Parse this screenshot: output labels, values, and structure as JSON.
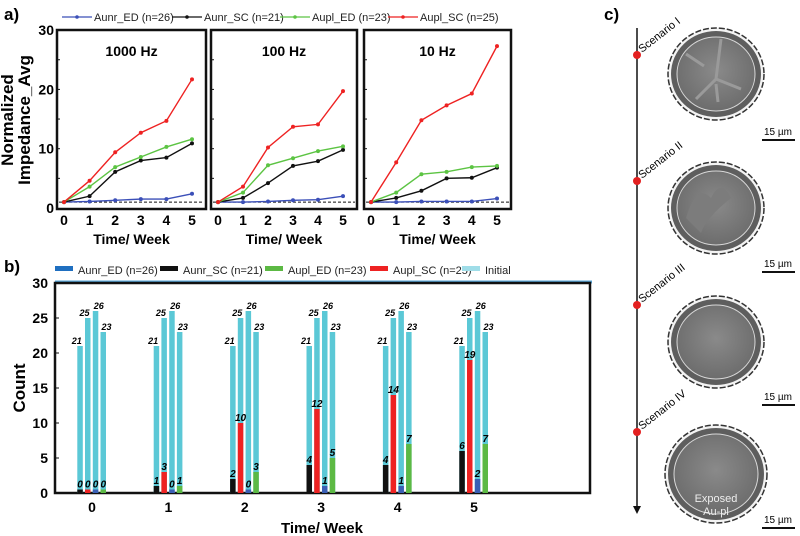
{
  "panel_labels": {
    "a": "a)",
    "b": "b)",
    "c": "c)"
  },
  "chart_data": [
    {
      "type": "line",
      "ylabel_lines": [
        "Normalized",
        "Impedance_Avg"
      ],
      "xlabel": "Time/ Week",
      "ylim": [
        0,
        30
      ],
      "yticks": [
        0,
        10,
        20,
        30
      ],
      "x": [
        0,
        1,
        2,
        3,
        4,
        5
      ],
      "reference_line": 1,
      "legend": "top",
      "series_meta": [
        {
          "name": "Aunr_ED (n=26)",
          "color": "#3b4fb8"
        },
        {
          "name": "Aunr_SC (n=21)",
          "color": "#111111"
        },
        {
          "name": "Aupl_ED (n=23)",
          "color": "#5cc443"
        },
        {
          "name": "Aupl_SC (n=25)",
          "color": "#ee2222"
        }
      ],
      "subplots": [
        {
          "title": "1000 Hz",
          "values": [
            [
              1,
              1.1,
              1.3,
              1.5,
              1.5,
              2.4
            ],
            [
              1,
              2.0,
              6.1,
              8.0,
              8.5,
              10.9
            ],
            [
              1,
              3.6,
              6.9,
              8.6,
              10.3,
              11.6
            ],
            [
              1,
              4.6,
              9.4,
              12.7,
              14.7,
              21.7
            ]
          ]
        },
        {
          "title": "100 Hz",
          "values": [
            [
              1,
              1.0,
              1.1,
              1.3,
              1.4,
              2.0
            ],
            [
              1,
              1.7,
              4.2,
              7.1,
              7.9,
              9.8
            ],
            [
              1,
              2.6,
              7.2,
              8.4,
              9.6,
              10.4
            ],
            [
              1,
              3.6,
              10.2,
              13.7,
              14.1,
              19.7
            ]
          ]
        },
        {
          "title": "10 Hz",
          "values": [
            [
              1,
              1.0,
              1.1,
              1.1,
              1.1,
              1.6
            ],
            [
              1,
              1.7,
              2.9,
              5.0,
              5.1,
              6.8
            ],
            [
              1,
              2.6,
              5.7,
              6.1,
              6.9,
              7.1
            ],
            [
              1,
              7.7,
              14.8,
              17.3,
              19.3,
              27.3
            ]
          ]
        }
      ]
    },
    {
      "type": "bar",
      "ylabel": "Count",
      "xlabel": "Time/ Week",
      "ylim": [
        0,
        30
      ],
      "yticks": [
        0,
        5,
        10,
        15,
        20,
        25,
        30
      ],
      "categories": [
        "0",
        "1",
        "2",
        "3",
        "4",
        "5"
      ],
      "legend": "top",
      "initial": {
        "name": "Initial",
        "color": "#5bc8d6"
      },
      "series": [
        {
          "name": "Aunr_ED (n=26)",
          "color": "#3a5fb5",
          "legend_color": "#1f6fc0",
          "initial": 26,
          "values": [
            0,
            0,
            0,
            1,
            1,
            2
          ]
        },
        {
          "name": "Aunr_SC (n=21)",
          "color": "#111111",
          "initial": 21,
          "values": [
            0,
            1,
            2,
            4,
            4,
            6
          ]
        },
        {
          "name": "Aupl_ED (n=23)",
          "color": "#5cb944",
          "initial": 23,
          "values": [
            0,
            1,
            3,
            5,
            7,
            7
          ]
        },
        {
          "name": "Aupl_SC (n=25)",
          "color": "#ee2222",
          "initial": 25,
          "values": [
            0,
            3,
            10,
            12,
            14,
            19
          ]
        }
      ]
    }
  ],
  "sem": {
    "scenarios": [
      "Scenario I",
      "Scenario II",
      "Scenario III",
      "Scenario IV"
    ],
    "scale_bar": "15 µm",
    "annotation_lines": [
      "Exposed",
      "Au-pl"
    ]
  }
}
